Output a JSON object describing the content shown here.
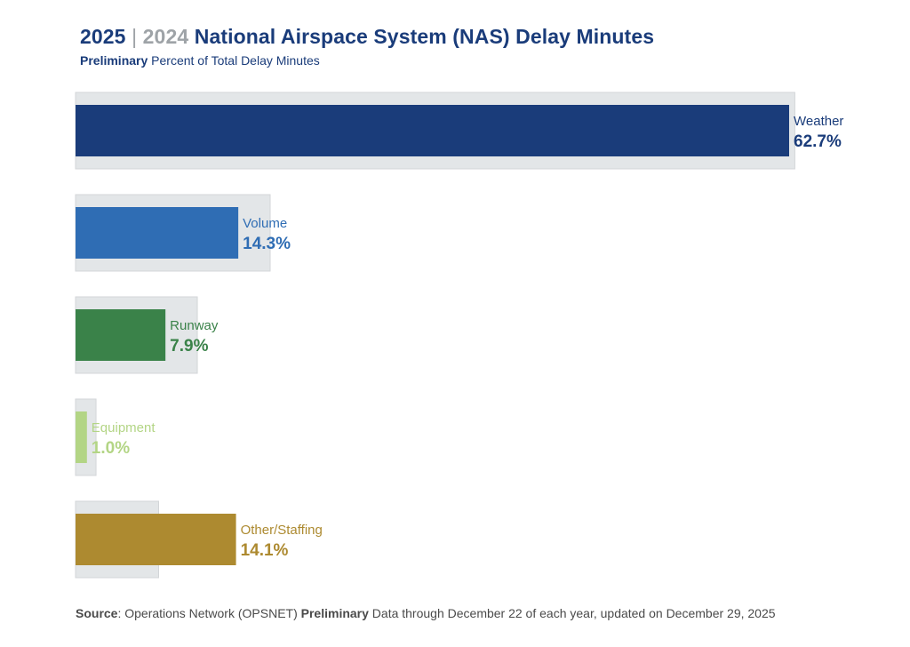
{
  "header": {
    "year_current": "2025",
    "separator": "|",
    "year_previous": "2024",
    "title_rest": "National Airspace System (NAS) Delay Minutes",
    "subtitle_bold": "Preliminary",
    "subtitle_rest": "Percent of Total Delay Minutes"
  },
  "footer": {
    "source_label": "Source",
    "source_text_1": ": Operations Network (OPSNET) ",
    "source_bold": "Preliminary",
    "source_text_2": " Data through December 22 of each year, updated on December 29, 2025"
  },
  "chart_data": {
    "type": "bar",
    "orientation": "horizontal",
    "title": "2025 | 2024 National Airspace System (NAS) Delay Minutes",
    "subtitle": "Preliminary Percent of Total Delay Minutes",
    "xlabel": "",
    "ylabel": "",
    "unit": "%",
    "grid": false,
    "categories": [
      "Weather",
      "Volume",
      "Runway",
      "Equipment",
      "Other/Staffing"
    ],
    "series": [
      {
        "name": "2025",
        "values": [
          62.7,
          14.3,
          7.9,
          1.0,
          14.1
        ],
        "colors": [
          "#1a3c7a",
          "#2f6db4",
          "#3a8249",
          "#b3d585",
          "#ad8a30"
        ],
        "labeled": true
      },
      {
        "name": "2024",
        "values": [
          63.2,
          17.1,
          10.7,
          1.8,
          7.3
        ],
        "color": "#e3e6e8",
        "border": "#d3d6d8",
        "labeled": false,
        "note": "estimated from grey background boxes"
      }
    ],
    "label_colors": [
      "#1a3c7a",
      "#2f6db4",
      "#3a8249",
      "#b3d585",
      "#ad8a30"
    ],
    "data_labels": [
      "62.7%",
      "14.3%",
      "7.9%",
      "1.0%",
      "14.1%"
    ],
    "xlim": [
      0,
      65
    ]
  }
}
